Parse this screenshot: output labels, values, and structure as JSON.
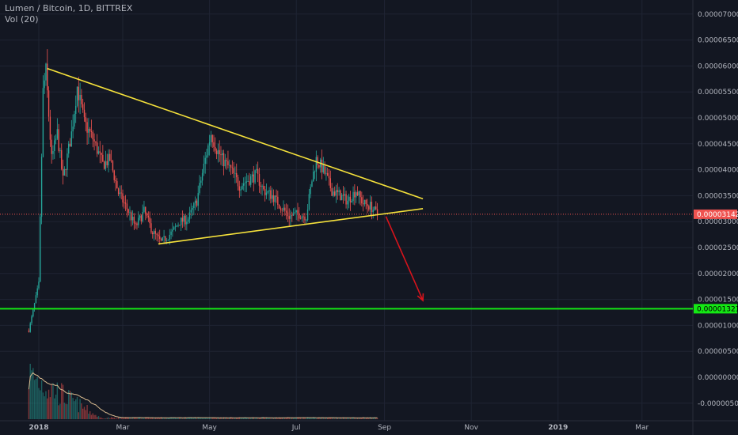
{
  "header": {
    "symbol": "Lumen / Bitcoin, 1D, BITTREX",
    "indicator": "Vol (20)"
  },
  "colors": {
    "background": "#131722",
    "grid": "#1f2433",
    "axis_text": "#b2b5be",
    "up_candle": "#26a69a",
    "down_candle": "#ef5350",
    "trend_lines": "#f5e13b",
    "support_line": "#14e814",
    "arrow": "#d8141c",
    "price_line": "#ef5350",
    "volume_ma": "#d7b98e"
  },
  "chart_data": {
    "type": "candlestick",
    "ylim": [
      -6e-07,
      7.2e-06
    ],
    "y_ticks": [
      "0.00007000",
      "0.00006500",
      "0.00006000",
      "0.00005500",
      "0.00005000",
      "0.00004500",
      "0.00004000",
      "0.00003500",
      "0.00003000",
      "0.00002500",
      "0.00002000",
      "0.00001500",
      "0.00001000",
      "0.00000500",
      "0.00000000",
      "-0.00000500"
    ],
    "x_ticks": [
      "2018",
      "Mar",
      "May",
      "Jul",
      "Sep",
      "Nov",
      "2019",
      "Mar"
    ],
    "current_price": {
      "label": "0.00003142",
      "value": 3.142e-06
    },
    "horizontal_level": {
      "label": "0.00001321",
      "value": 1.321e-06
    },
    "series_path": [
      [
        "2017-12-25",
        9e-07
      ],
      [
        "2018-01-01",
        1.8e-06
      ],
      [
        "2018-01-04",
        5.5e-06
      ],
      [
        "2018-01-06",
        5.9e-06
      ],
      [
        "2018-01-10",
        4.2e-06
      ],
      [
        "2018-01-14",
        4.7e-06
      ],
      [
        "2018-01-18",
        3.8e-06
      ],
      [
        "2018-01-24",
        4.7e-06
      ],
      [
        "2018-01-28",
        5.6e-06
      ],
      [
        "2018-02-02",
        4.9e-06
      ],
      [
        "2018-02-08",
        4.6e-06
      ],
      [
        "2018-02-15",
        4.1e-06
      ],
      [
        "2018-02-20",
        4.2e-06
      ],
      [
        "2018-02-26",
        3.55e-06
      ],
      [
        "2018-03-05",
        3.2e-06
      ],
      [
        "2018-03-10",
        2.9e-06
      ],
      [
        "2018-03-16",
        3.2e-06
      ],
      [
        "2018-03-22",
        2.8e-06
      ],
      [
        "2018-03-28",
        2.6e-06
      ],
      [
        "2018-04-05",
        2.8e-06
      ],
      [
        "2018-04-10",
        3e-06
      ],
      [
        "2018-04-16",
        3.05e-06
      ],
      [
        "2018-04-22",
        3.4e-06
      ],
      [
        "2018-04-28",
        4.2e-06
      ],
      [
        "2018-05-02",
        4.7e-06
      ],
      [
        "2018-05-06",
        4.4e-06
      ],
      [
        "2018-05-10",
        4.2e-06
      ],
      [
        "2018-05-16",
        4e-06
      ],
      [
        "2018-05-22",
        3.7e-06
      ],
      [
        "2018-05-28",
        3.8e-06
      ],
      [
        "2018-06-03",
        3.9e-06
      ],
      [
        "2018-06-08",
        3.6e-06
      ],
      [
        "2018-06-14",
        3.5e-06
      ],
      [
        "2018-06-20",
        3.3e-06
      ],
      [
        "2018-06-26",
        3.1e-06
      ],
      [
        "2018-07-02",
        3.15e-06
      ],
      [
        "2018-07-08",
        3.1e-06
      ],
      [
        "2018-07-12",
        3.8e-06
      ],
      [
        "2018-07-15",
        4.2e-06
      ],
      [
        "2018-07-20",
        4e-06
      ],
      [
        "2018-07-26",
        3.6e-06
      ],
      [
        "2018-08-01",
        3.5e-06
      ],
      [
        "2018-08-06",
        3.4e-06
      ],
      [
        "2018-08-12",
        3.6e-06
      ],
      [
        "2018-08-17",
        3.35e-06
      ],
      [
        "2018-08-22",
        3.3e-06
      ],
      [
        "2018-08-27",
        3.14e-06
      ]
    ],
    "annotations": [
      {
        "kind": "trend_line",
        "name": "descending resistance",
        "from": [
          "2018-01-07",
          5.95e-06
        ],
        "to": [
          "2018-09-28",
          3.44e-06
        ]
      },
      {
        "kind": "trend_line",
        "name": "ascending support",
        "from": [
          "2018-03-26",
          2.57e-06
        ],
        "to": [
          "2018-09-28",
          3.25e-06
        ]
      },
      {
        "kind": "arrow",
        "from": [
          "2018-09-02",
          3.1e-06
        ],
        "to": [
          "2018-09-28",
          1.48e-06
        ]
      }
    ]
  }
}
